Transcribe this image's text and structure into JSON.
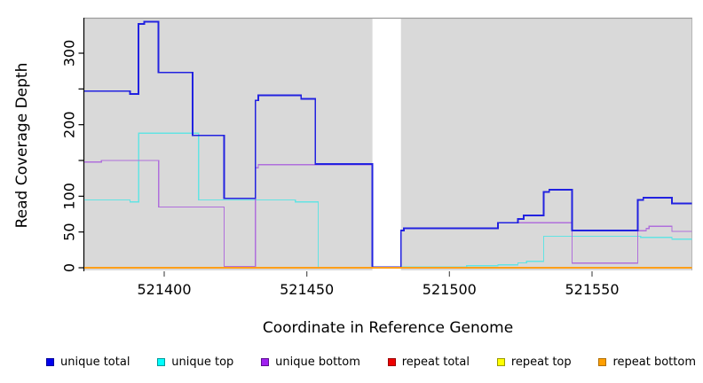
{
  "chart": {
    "xlabel": "Coordinate in Reference Genome",
    "ylabel": "Read Coverage Depth"
  },
  "chart_data": {
    "type": "line",
    "subtype": "step-coverage",
    "title": "",
    "xlabel": "Coordinate in Reference Genome",
    "ylabel": "Read Coverage Depth",
    "xlim": [
      521372,
      521585
    ],
    "ylim": [
      -4,
      349
    ],
    "grid": false,
    "plot_bg": "#d9d9d9",
    "masked_region": {
      "x_start": 521473,
      "x_end": 521483,
      "color": "#ffffff"
    },
    "x_ticks": [
      {
        "value": 521400,
        "label": "521400"
      },
      {
        "value": 521450,
        "label": "521450"
      },
      {
        "value": 521500,
        "label": "521500"
      },
      {
        "value": 521550,
        "label": "521550"
      }
    ],
    "y_ticks": [
      {
        "value": 0,
        "label": "0"
      },
      {
        "value": 50,
        "label": "50"
      },
      {
        "value": 100,
        "label": "100"
      },
      {
        "value": 150,
        "label": ""
      },
      {
        "value": 200,
        "label": "200"
      },
      {
        "value": 250,
        "label": ""
      },
      {
        "value": 300,
        "label": "300"
      }
    ],
    "legend_position": "bottom",
    "draw_order": [
      "repeat total",
      "repeat top",
      "unique top",
      "unique bottom",
      "unique total",
      "repeat bottom"
    ],
    "series": [
      {
        "name": "unique total",
        "color": "#2222e0",
        "steps": [
          [
            521372,
            247
          ],
          [
            521388,
            243
          ],
          [
            521391,
            341
          ],
          [
            521393,
            344
          ],
          [
            521398,
            273
          ],
          [
            521410,
            185
          ],
          [
            521421,
            97
          ],
          [
            521432,
            234
          ],
          [
            521433,
            241
          ],
          [
            521448,
            236
          ],
          [
            521453,
            145
          ],
          [
            521473,
            1
          ],
          [
            521483,
            52
          ],
          [
            521484,
            55
          ],
          [
            521517,
            63
          ],
          [
            521524,
            68
          ],
          [
            521526,
            73
          ],
          [
            521533,
            106
          ],
          [
            521535,
            109
          ],
          [
            521543,
            52
          ],
          [
            521566,
            95
          ],
          [
            521568,
            98
          ],
          [
            521578,
            90
          ]
        ]
      },
      {
        "name": "unique top",
        "color": "#63e3e3",
        "steps": [
          [
            521372,
            95
          ],
          [
            521388,
            92
          ],
          [
            521391,
            188
          ],
          [
            521412,
            95
          ],
          [
            521446,
            92
          ],
          [
            521454,
            0.5
          ],
          [
            521483,
            1
          ],
          [
            521506,
            3
          ],
          [
            521517,
            4
          ],
          [
            521524,
            7
          ],
          [
            521527,
            9
          ],
          [
            521533,
            44
          ],
          [
            521567,
            42.5
          ],
          [
            521578,
            40
          ]
        ]
      },
      {
        "name": "unique bottom",
        "color": "#b06fdc",
        "steps": [
          [
            521372,
            148
          ],
          [
            521378,
            150
          ],
          [
            521398,
            85
          ],
          [
            521421,
            2
          ],
          [
            521432,
            140
          ],
          [
            521433,
            144
          ],
          [
            521473,
            1
          ],
          [
            521483,
            52
          ],
          [
            521484,
            55
          ],
          [
            521517,
            63
          ],
          [
            521543,
            6.5
          ],
          [
            521566,
            52
          ],
          [
            521569,
            55
          ],
          [
            521570,
            58
          ],
          [
            521578,
            51
          ]
        ]
      },
      {
        "name": "repeat total",
        "color": "#e02020",
        "steps": [
          [
            521372,
            0
          ]
        ]
      },
      {
        "name": "repeat top",
        "color": "#f0f000",
        "steps": [
          [
            521372,
            0
          ]
        ]
      },
      {
        "name": "repeat bottom",
        "color": "#ff9f1a",
        "steps": [
          [
            521372,
            0
          ]
        ]
      }
    ]
  },
  "legend": {
    "items": [
      {
        "label": "unique total",
        "fill": "#0000ee",
        "border": "#00009a"
      },
      {
        "label": "unique top",
        "fill": "#00ffff",
        "border": "#009a9a"
      },
      {
        "label": "unique bottom",
        "fill": "#a020f0",
        "border": "#5d0d91"
      },
      {
        "label": "repeat total",
        "fill": "#ee0000",
        "border": "#9a0000"
      },
      {
        "label": "repeat top",
        "fill": "#ffff00",
        "border": "#9a9a00"
      },
      {
        "label": "repeat bottom",
        "fill": "#ff9f00",
        "border": "#b06f00"
      }
    ]
  }
}
